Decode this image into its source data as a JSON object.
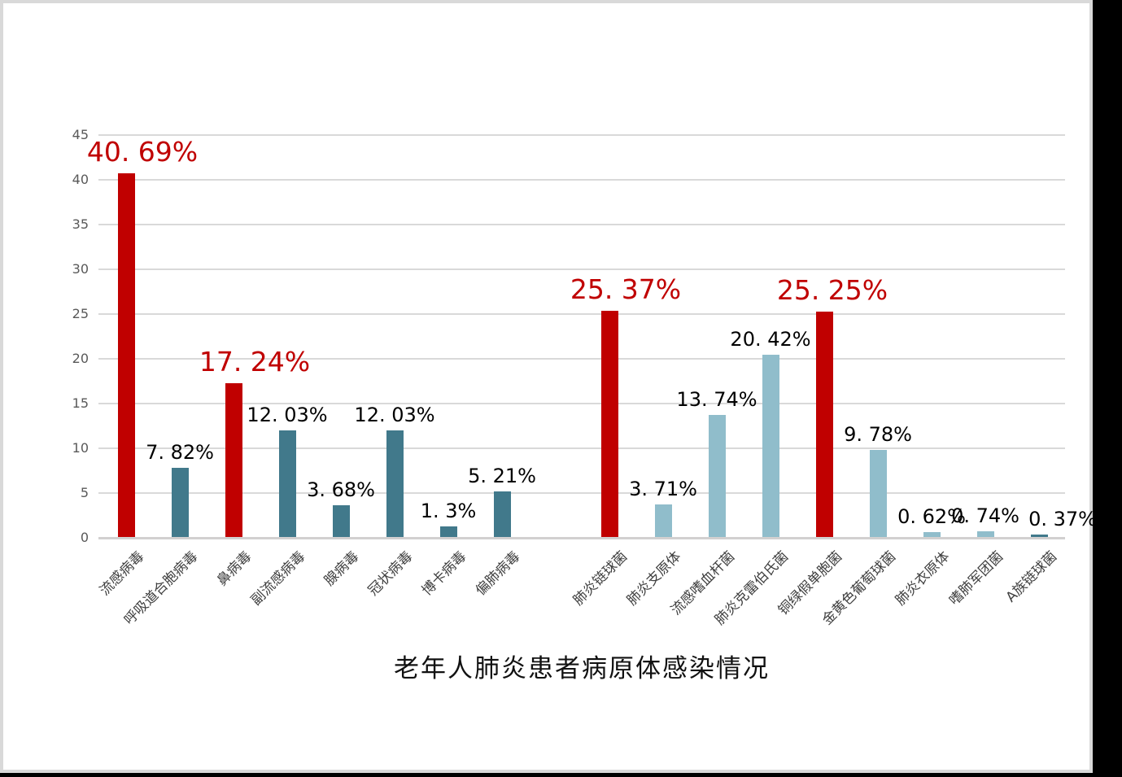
{
  "page": {
    "background": "#000000",
    "canvas_background": "#FFFFFF",
    "canvas_border_color": "#D9D9D9"
  },
  "chart_data": {
    "type": "bar",
    "title": "老年人肺炎患者病原体感染情况",
    "xlabel": "",
    "ylabel": "",
    "ylim": [
      0,
      45
    ],
    "yticks": [
      0,
      5,
      10,
      15,
      20,
      25,
      30,
      35,
      40,
      45
    ],
    "grid": true,
    "legend": "none",
    "colors": {
      "highlight": "#C00000",
      "dark_teal": "#41798B",
      "light_blue": "#90BDCB",
      "gridline": "#D9D9D9",
      "axis_line": "#D2D0D0",
      "ytick_label": "#595959",
      "category_label": "#3F3F3F",
      "value_label": "#000000"
    },
    "points": [
      {
        "label": "流感病毒",
        "value": 40.69,
        "display": "40. 69%",
        "color": "highlight",
        "emphasis": true
      },
      {
        "label": "呼吸道合胞病毒",
        "value": 7.82,
        "display": "7. 82%",
        "color": "dark_teal",
        "emphasis": false
      },
      {
        "label": "鼻病毒",
        "value": 17.24,
        "display": "17. 24%",
        "color": "highlight",
        "emphasis": true
      },
      {
        "label": "副流感病毒",
        "value": 12.03,
        "display": "12. 03%",
        "color": "dark_teal",
        "emphasis": false
      },
      {
        "label": "腺病毒",
        "value": 3.68,
        "display": "3. 68%",
        "color": "dark_teal",
        "emphasis": false
      },
      {
        "label": "冠状病毒",
        "value": 12.03,
        "display": "12. 03%",
        "color": "dark_teal",
        "emphasis": false
      },
      {
        "label": "博卡病毒",
        "value": 1.3,
        "display": "1. 3%",
        "color": "dark_teal",
        "emphasis": false
      },
      {
        "label": "偏肺病毒",
        "value": 5.21,
        "display": "5. 21%",
        "color": "dark_teal",
        "emphasis": false
      },
      {
        "label": "",
        "value": null,
        "display": "",
        "color": "none",
        "emphasis": false
      },
      {
        "label": "肺炎链球菌",
        "value": 25.37,
        "display": "25. 37%",
        "color": "highlight",
        "emphasis": true
      },
      {
        "label": "肺炎支原体",
        "value": 3.71,
        "display": "3. 71%",
        "color": "light_blue",
        "emphasis": false
      },
      {
        "label": "流感嗜血杆菌",
        "value": 13.74,
        "display": "13. 74%",
        "color": "light_blue",
        "emphasis": false
      },
      {
        "label": "肺炎克雷伯氏菌",
        "value": 20.42,
        "display": "20. 42%",
        "color": "light_blue",
        "emphasis": false
      },
      {
        "label": "铜绿假单胞菌",
        "value": 25.25,
        "display": "25. 25%",
        "color": "highlight",
        "emphasis": true
      },
      {
        "label": "金黄色葡萄球菌",
        "value": 9.78,
        "display": "9. 78%",
        "color": "light_blue",
        "emphasis": false
      },
      {
        "label": "肺炎衣原体",
        "value": 0.62,
        "display": "0. 62%",
        "color": "light_blue",
        "emphasis": false
      },
      {
        "label": "嗜肺军团菌",
        "value": 0.74,
        "display": "0. 74%",
        "color": "light_blue",
        "emphasis": false
      },
      {
        "label": "A族链球菌",
        "value": 0.37,
        "display": "0. 37%",
        "color": "dark_teal",
        "emphasis": false
      }
    ]
  }
}
